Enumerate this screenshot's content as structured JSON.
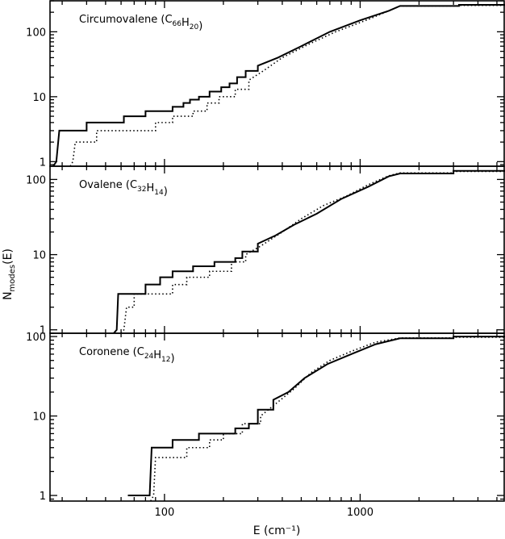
{
  "chart_data": {
    "type": "line",
    "xlabel": "E (cm⁻¹)",
    "ylabel_main": "N",
    "ylabel_sub": "modes",
    "ylabel_tail": "(E)",
    "x_scale": "log",
    "y_scale": "log",
    "xlim": [
      26,
      5500
    ],
    "x_tick_labels": [
      {
        "value": 100,
        "label": "100"
      },
      {
        "value": 1000,
        "label": "1000"
      }
    ],
    "panels": [
      {
        "label_main": "Circumovalene (C",
        "label_parts": [
          {
            "text": "Circumovalene (C",
            "sub": false
          },
          {
            "text": "66",
            "sub": true
          },
          {
            "text": "H",
            "sub": false
          },
          {
            "text": "20",
            "sub": true
          },
          {
            "text": ")",
            "sub": false
          }
        ],
        "ylim": [
          0.85,
          300
        ],
        "y_tick_labels": [
          {
            "value": 1,
            "label": "1"
          },
          {
            "value": 10,
            "label": "10"
          },
          {
            "value": 100,
            "label": "100"
          }
        ],
        "series": [
          {
            "style": "solid",
            "points": [
              [
                27,
                0.85
              ],
              [
                28,
                1
              ],
              [
                29,
                3
              ],
              [
                40,
                3
              ],
              [
                40,
                4
              ],
              [
                62,
                4
              ],
              [
                62,
                5
              ],
              [
                80,
                5
              ],
              [
                80,
                6
              ],
              [
                110,
                6
              ],
              [
                110,
                7
              ],
              [
                125,
                7
              ],
              [
                125,
                8
              ],
              [
                135,
                8
              ],
              [
                135,
                9
              ],
              [
                150,
                9
              ],
              [
                150,
                10
              ],
              [
                170,
                10
              ],
              [
                170,
                12
              ],
              [
                195,
                12
              ],
              [
                195,
                14
              ],
              [
                215,
                14
              ],
              [
                215,
                16
              ],
              [
                235,
                16
              ],
              [
                235,
                20
              ],
              [
                260,
                20
              ],
              [
                260,
                25
              ],
              [
                300,
                25
              ],
              [
                300,
                30
              ],
              [
                380,
                40
              ],
              [
                500,
                60
              ],
              [
                700,
                100
              ],
              [
                1000,
                150
              ],
              [
                1400,
                210
              ],
              [
                1600,
                250
              ],
              [
                3200,
                250
              ],
              [
                3200,
                260
              ],
              [
                5500,
                260
              ]
            ]
          },
          {
            "style": "dotted",
            "points": [
              [
                33,
                0.85
              ],
              [
                34,
                1
              ],
              [
                35,
                2
              ],
              [
                45,
                2
              ],
              [
                45,
                3
              ],
              [
                90,
                3
              ],
              [
                90,
                4
              ],
              [
                110,
                4
              ],
              [
                110,
                5
              ],
              [
                140,
                5
              ],
              [
                140,
                6
              ],
              [
                165,
                6
              ],
              [
                165,
                8
              ],
              [
                190,
                8
              ],
              [
                190,
                10
              ],
              [
                230,
                10
              ],
              [
                230,
                13
              ],
              [
                270,
                13
              ],
              [
                270,
                18
              ],
              [
                320,
                25
              ],
              [
                400,
                40
              ],
              [
                550,
                65
              ],
              [
                750,
                100
              ],
              [
                1100,
                155
              ],
              [
                1400,
                210
              ],
              [
                1600,
                250
              ],
              [
                3200,
                250
              ],
              [
                3200,
                255
              ],
              [
                5500,
                255
              ]
            ]
          }
        ]
      },
      {
        "label_parts": [
          {
            "text": "Ovalene (C",
            "sub": false
          },
          {
            "text": "32",
            "sub": true
          },
          {
            "text": "H",
            "sub": false
          },
          {
            "text": "14",
            "sub": true
          },
          {
            "text": ")",
            "sub": false
          }
        ],
        "ylim": [
          0.9,
          150
        ],
        "y_tick_labels": [
          {
            "value": 1,
            "label": "1"
          },
          {
            "value": 10,
            "label": "10"
          },
          {
            "value": 100,
            "label": "100"
          }
        ],
        "series": [
          {
            "style": "solid",
            "points": [
              [
                55,
                0.9
              ],
              [
                57,
                1
              ],
              [
                58,
                3
              ],
              [
                80,
                3
              ],
              [
                80,
                4
              ],
              [
                95,
                4
              ],
              [
                95,
                5
              ],
              [
                110,
                5
              ],
              [
                110,
                6
              ],
              [
                140,
                6
              ],
              [
                140,
                7
              ],
              [
                180,
                7
              ],
              [
                180,
                8
              ],
              [
                230,
                8
              ],
              [
                230,
                9
              ],
              [
                250,
                9
              ],
              [
                250,
                11
              ],
              [
                300,
                11
              ],
              [
                300,
                14
              ],
              [
                370,
                18
              ],
              [
                460,
                25
              ],
              [
                600,
                35
              ],
              [
                800,
                55
              ],
              [
                1100,
                80
              ],
              [
                1400,
                110
              ],
              [
                1600,
                120
              ],
              [
                3000,
                120
              ],
              [
                3000,
                130
              ],
              [
                5500,
                130
              ]
            ]
          },
          {
            "style": "dotted",
            "points": [
              [
                60,
                0.9
              ],
              [
                62,
                1
              ],
              [
                64,
                2
              ],
              [
                70,
                2
              ],
              [
                70,
                3
              ],
              [
                110,
                3
              ],
              [
                110,
                4
              ],
              [
                130,
                4
              ],
              [
                130,
                5
              ],
              [
                170,
                5
              ],
              [
                170,
                6
              ],
              [
                220,
                6
              ],
              [
                220,
                8
              ],
              [
                260,
                8
              ],
              [
                260,
                10
              ],
              [
                310,
                13
              ],
              [
                400,
                20
              ],
              [
                500,
                30
              ],
              [
                650,
                45
              ],
              [
                850,
                60
              ],
              [
                1100,
                85
              ],
              [
                1400,
                112
              ],
              [
                1600,
                122
              ],
              [
                3000,
                122
              ],
              [
                3000,
                128
              ],
              [
                5500,
                128
              ]
            ]
          }
        ]
      },
      {
        "label_parts": [
          {
            "text": "Coronene (C",
            "sub": false
          },
          {
            "text": "24",
            "sub": true
          },
          {
            "text": "H",
            "sub": false
          },
          {
            "text": "12",
            "sub": true
          },
          {
            "text": ")",
            "sub": false
          }
        ],
        "ylim": [
          0.85,
          110
        ],
        "y_tick_labels": [
          {
            "value": 1,
            "label": "1"
          },
          {
            "value": 10,
            "label": "10"
          },
          {
            "value": 100,
            "label": "100"
          }
        ],
        "series": [
          {
            "style": "solid",
            "points": [
              [
                65,
                1
              ],
              [
                84,
                1
              ],
              [
                86,
                4
              ],
              [
                110,
                4
              ],
              [
                110,
                5
              ],
              [
                150,
                5
              ],
              [
                150,
                6
              ],
              [
                230,
                6
              ],
              [
                230,
                7
              ],
              [
                270,
                7
              ],
              [
                270,
                8
              ],
              [
                300,
                8
              ],
              [
                300,
                12
              ],
              [
                360,
                12
              ],
              [
                360,
                16
              ],
              [
                430,
                20
              ],
              [
                520,
                30
              ],
              [
                680,
                45
              ],
              [
                900,
                60
              ],
              [
                1200,
                80
              ],
              [
                1600,
                95
              ],
              [
                3000,
                95
              ],
              [
                3000,
                100
              ],
              [
                5500,
                100
              ]
            ]
          },
          {
            "style": "dotted",
            "points": [
              [
                85,
                0.85
              ],
              [
                88,
                1
              ],
              [
                90,
                3
              ],
              [
                130,
                3
              ],
              [
                130,
                4
              ],
              [
                170,
                4
              ],
              [
                170,
                5
              ],
              [
                200,
                5
              ],
              [
                200,
                6
              ],
              [
                250,
                6
              ],
              [
                250,
                8
              ],
              [
                310,
                8
              ],
              [
                310,
                10
              ],
              [
                380,
                15
              ],
              [
                460,
                22
              ],
              [
                560,
                35
              ],
              [
                700,
                50
              ],
              [
                900,
                65
              ],
              [
                1200,
                85
              ],
              [
                1600,
                96
              ],
              [
                3000,
                96
              ],
              [
                3000,
                98
              ],
              [
                5500,
                98
              ]
            ]
          }
        ]
      }
    ]
  }
}
